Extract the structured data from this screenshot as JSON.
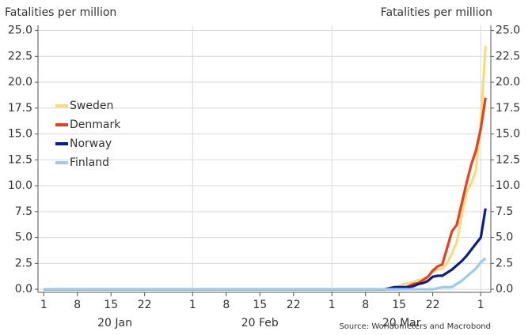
{
  "chart_data": {
    "type": "line",
    "ylabel": "Fatalities per million",
    "y2label": "Fatalities per million",
    "source": "Source: Worldometers and Macrobond",
    "x": [
      0,
      70,
      71,
      72,
      73,
      74,
      75,
      76,
      77,
      78,
      79,
      80,
      81,
      82,
      83,
      84,
      85,
      86,
      87,
      88,
      89,
      90,
      91,
      92
    ],
    "xlim": [
      -1.2,
      93.1
    ],
    "xticks": [
      {
        "value": 0,
        "label": "1"
      },
      {
        "value": 7,
        "label": "8"
      },
      {
        "value": 14,
        "label": "15"
      },
      {
        "value": 21,
        "label": "22"
      },
      {
        "value": 31,
        "label": "1"
      },
      {
        "value": 38,
        "label": "8"
      },
      {
        "value": 45,
        "label": "15"
      },
      {
        "value": 52,
        "label": "22"
      },
      {
        "value": 60,
        "label": "1"
      },
      {
        "value": 67,
        "label": "8"
      },
      {
        "value": 74,
        "label": "15"
      },
      {
        "value": 81,
        "label": "22"
      },
      {
        "value": 91,
        "label": "1"
      }
    ],
    "month_labels": [
      {
        "value": 14.8,
        "label": "20 Jan"
      },
      {
        "value": 45,
        "label": "20 Feb"
      },
      {
        "value": 74.5,
        "label": "20 Mar"
      }
    ],
    "ylim": [
      -0.3,
      25.5
    ],
    "yticks": [
      {
        "value": 0,
        "label": "0.0"
      },
      2.5,
      {
        "value": 5,
        "label": "5.0"
      },
      7.5,
      {
        "value": 10,
        "label": "10.0"
      },
      12.5,
      {
        "value": 15,
        "label": "15.0"
      },
      17.5,
      {
        "value": 20,
        "label": "20.0"
      },
      22.5,
      {
        "value": 25,
        "label": "25.0"
      }
    ],
    "y2lim": [
      -0.3,
      25.5
    ],
    "y2ticks": [
      {
        "value": 0,
        "label": "0.0"
      },
      2.5,
      {
        "value": 5,
        "label": "5.0"
      },
      7.5,
      {
        "value": 10,
        "label": "10.0"
      },
      12.5,
      {
        "value": 15,
        "label": "15.0"
      },
      17.5,
      {
        "value": 20,
        "label": "20.0"
      },
      22.5,
      {
        "value": 25,
        "label": "25.0"
      }
    ],
    "grid": true,
    "legend": "center-left",
    "series": [
      {
        "name": "Sweden",
        "color": "#f7dc7c",
        "values": [
          0,
          0,
          0,
          0,
          0.1,
          0.3,
          0.5,
          0.6,
          0.7,
          0.9,
          1.0,
          1.2,
          1.7,
          1.9,
          2.0,
          2.5,
          3.5,
          4.5,
          7,
          9.3,
          10.2,
          11.5,
          16,
          23.5
        ]
      },
      {
        "name": "Denmark",
        "color": "#e8401c",
        "values": [
          0,
          0,
          0,
          0,
          0,
          0,
          0.1,
          0.3,
          0.5,
          0.6,
          0.9,
          1.2,
          1.8,
          2.2,
          2.4,
          4.0,
          5.6,
          6.2,
          8.2,
          10.2,
          12,
          13.4,
          15.5,
          18.5
        ]
      },
      {
        "name": "Norway",
        "color": "#0b1c8c",
        "values": [
          0,
          0,
          0,
          0.1,
          0.2,
          0.2,
          0.2,
          0.2,
          0.3,
          0.5,
          0.6,
          0.8,
          1.2,
          1.3,
          1.3,
          1.6,
          1.9,
          2.3,
          2.7,
          3.2,
          3.8,
          4.4,
          5.0,
          7.8
        ]
      },
      {
        "name": "Finland",
        "color": "#9ccbef",
        "values": [
          0,
          0,
          0,
          0,
          0,
          0,
          0,
          0,
          0,
          0,
          0,
          0,
          0,
          0.1,
          0.2,
          0.2,
          0.2,
          0.5,
          0.8,
          1.2,
          1.6,
          2.0,
          2.6,
          3.0
        ]
      }
    ]
  }
}
